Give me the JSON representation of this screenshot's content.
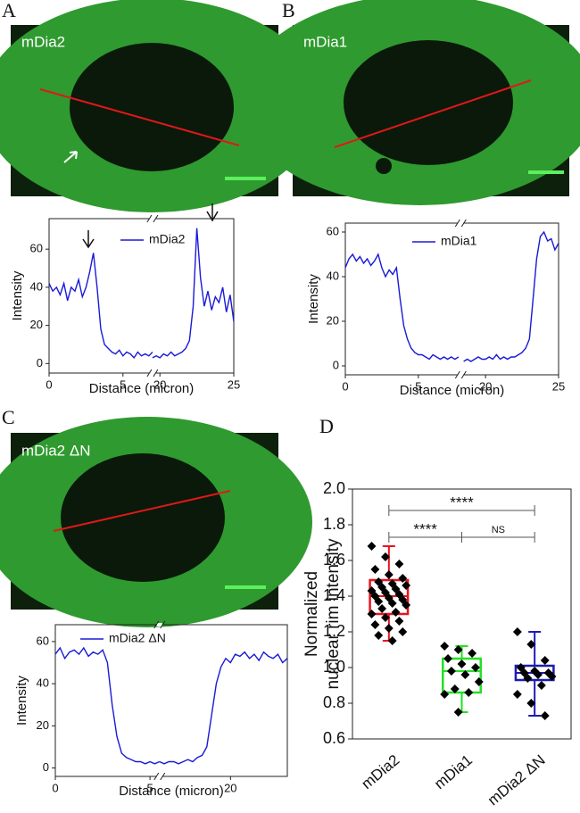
{
  "panels": [
    "A",
    "B",
    "C",
    "D"
  ],
  "images": [
    {
      "label": "mDia2"
    },
    {
      "label": "mDia1"
    },
    {
      "label": "mDia2 ΔN"
    }
  ],
  "chart_data": [
    {
      "type": "line",
      "xlabel": "Distance (micron)",
      "ylabel": "Intensity",
      "xlim": [
        0,
        25
      ],
      "xbreak": [
        7,
        19.5
      ],
      "xticks": [
        0,
        5,
        20,
        25
      ],
      "ylim": [
        -5,
        76
      ],
      "yticks": [
        0,
        20,
        40,
        60
      ],
      "x": [
        0,
        0.25,
        0.5,
        0.75,
        1,
        1.25,
        1.5,
        1.75,
        2,
        2.25,
        2.5,
        2.75,
        3,
        3.25,
        3.5,
        3.75,
        4,
        4.25,
        4.5,
        4.75,
        5,
        5.25,
        5.5,
        5.75,
        6,
        6.25,
        6.5,
        6.75,
        7,
        null,
        19.5,
        19.75,
        20,
        20.25,
        20.5,
        20.75,
        21,
        21.25,
        21.5,
        21.75,
        22,
        22.25,
        22.5,
        22.75,
        23,
        23.25,
        23.5,
        23.75,
        24,
        24.25,
        24.5,
        24.75,
        25
      ],
      "series": [
        {
          "name": "mDia2",
          "color": "#1a1ad8",
          "values": [
            42,
            38,
            40,
            36,
            42,
            33,
            40,
            38,
            44,
            35,
            40,
            48,
            58,
            40,
            18,
            10,
            8,
            6,
            5,
            7,
            4,
            6,
            5,
            3,
            6,
            4,
            5,
            4,
            6,
            null,
            3,
            4,
            3,
            5,
            4,
            6,
            4,
            5,
            6,
            8,
            12,
            30,
            71,
            45,
            30,
            38,
            28,
            35,
            32,
            40,
            27,
            36,
            22
          ]
        }
      ]
    },
    {
      "type": "line",
      "xlabel": "Distance (micron)",
      "ylabel": "Intensity",
      "xlim": [
        0,
        25
      ],
      "xbreak": [
        7.9,
        18.3
      ],
      "xticks": [
        0,
        5,
        20,
        25
      ],
      "ylim": [
        -4,
        64
      ],
      "yticks": [
        0,
        20,
        40,
        60
      ],
      "x": [
        0,
        0.25,
        0.5,
        0.75,
        1,
        1.25,
        1.5,
        1.75,
        2,
        2.25,
        2.5,
        2.75,
        3,
        3.25,
        3.5,
        3.75,
        4,
        4.25,
        4.5,
        4.75,
        5,
        5.25,
        5.5,
        5.75,
        6,
        6.25,
        6.5,
        6.75,
        7,
        7.25,
        7.5,
        7.75,
        null,
        18.5,
        18.75,
        19,
        19.25,
        19.5,
        19.75,
        20,
        20.25,
        20.5,
        20.75,
        21,
        21.25,
        21.5,
        21.75,
        22,
        22.25,
        22.5,
        22.75,
        23,
        23.25,
        23.5,
        23.75,
        24,
        24.25,
        24.5,
        24.75,
        25
      ],
      "series": [
        {
          "name": "mDia1",
          "color": "#1a1ad8",
          "values": [
            44,
            48,
            50,
            47,
            49,
            46,
            48,
            45,
            47,
            50,
            44,
            40,
            43,
            41,
            44,
            30,
            18,
            12,
            8,
            6,
            5,
            5,
            4,
            3,
            5,
            4,
            3,
            4,
            3,
            4,
            3,
            4,
            null,
            2,
            3,
            2,
            3,
            4,
            3,
            3,
            4,
            3,
            5,
            3,
            4,
            3,
            4,
            4,
            5,
            6,
            8,
            12,
            30,
            48,
            58,
            60,
            56,
            57,
            52,
            55
          ]
        }
      ]
    },
    {
      "type": "line",
      "xlabel": "Distance (micron)",
      "ylabel": "Intensity",
      "xlim": [
        0,
        23
      ],
      "xbreak": [
        5.5,
        16.25
      ],
      "xticks": [
        0,
        5,
        20
      ],
      "ylim": [
        -4,
        68
      ],
      "yticks": [
        0,
        20,
        40,
        60
      ],
      "x": [
        0,
        0.25,
        0.5,
        0.75,
        1,
        1.25,
        1.5,
        1.75,
        2,
        2.25,
        2.5,
        2.75,
        3,
        3.25,
        3.5,
        3.75,
        4,
        4.25,
        4.5,
        4.75,
        5,
        5.25,
        5.5,
        null,
        16.25,
        16.5,
        16.75,
        17,
        17.25,
        17.5,
        17.75,
        18,
        18.25,
        18.5,
        18.75,
        19,
        19.25,
        19.5,
        19.75,
        20,
        20.25,
        20.5,
        20.75,
        21,
        21.25,
        21.5,
        21.75,
        22,
        22.25,
        22.5,
        22.75,
        23
      ],
      "series": [
        {
          "name": "mDia2 ΔN",
          "color": "#1a1ad8",
          "values": [
            54,
            57,
            52,
            55,
            56,
            54,
            57,
            53,
            55,
            54,
            56,
            50,
            30,
            15,
            7,
            5,
            4,
            3,
            3,
            2,
            3,
            2,
            3,
            null,
            3,
            2,
            3,
            3,
            2,
            3,
            4,
            3,
            5,
            6,
            10,
            25,
            40,
            48,
            52,
            50,
            54,
            53,
            55,
            52,
            54,
            51,
            55,
            53,
            52,
            54,
            50,
            52
          ]
        }
      ]
    },
    {
      "type": "box",
      "ylabel": [
        "Normalized",
        "nuclear rim intensity"
      ],
      "categories": [
        "mDia2",
        "mDia1",
        "mDia2  ΔN"
      ],
      "ylim": [
        0.6,
        2.0
      ],
      "yticks": [
        0.6,
        0.8,
        {
          "value": 1,
          "label": "1.0"
        },
        1.2,
        1.4,
        1.6,
        1.8,
        {
          "value": 2,
          "label": "2.0"
        }
      ],
      "annotations": [
        "****",
        "****",
        "NS"
      ],
      "series": [
        {
          "color": "#e8141e",
          "whisker_low": 1.15,
          "q1": 1.3,
          "median": 1.4,
          "q3": 1.49,
          "whisker_high": 1.68,
          "points": [
            1.68,
            1.62,
            1.58,
            1.55,
            1.52,
            1.5,
            1.48,
            1.47,
            1.46,
            1.45,
            1.44,
            1.43,
            1.42,
            1.41,
            1.4,
            1.39,
            1.38,
            1.37,
            1.36,
            1.35,
            1.33,
            1.31,
            1.3,
            1.28,
            1.26,
            1.24,
            1.22,
            1.2,
            1.18,
            1.15
          ]
        },
        {
          "color": "#22e022",
          "whisker_low": 0.75,
          "q1": 0.86,
          "median": 0.98,
          "q3": 1.05,
          "whisker_high": 1.12,
          "points": [
            1.12,
            1.1,
            1.08,
            1.05,
            1.02,
            1.0,
            0.98,
            0.96,
            0.92,
            0.88,
            0.86,
            0.85,
            0.75
          ]
        },
        {
          "color": "#1c1cb4",
          "whisker_low": 0.73,
          "q1": 0.93,
          "median": 0.97,
          "q3": 1.01,
          "whisker_high": 1.2,
          "points": [
            1.2,
            1.13,
            1.04,
            1.0,
            0.98,
            0.97,
            0.97,
            0.96,
            0.95,
            0.94,
            0.9,
            0.85,
            0.8,
            0.73
          ]
        }
      ]
    }
  ]
}
